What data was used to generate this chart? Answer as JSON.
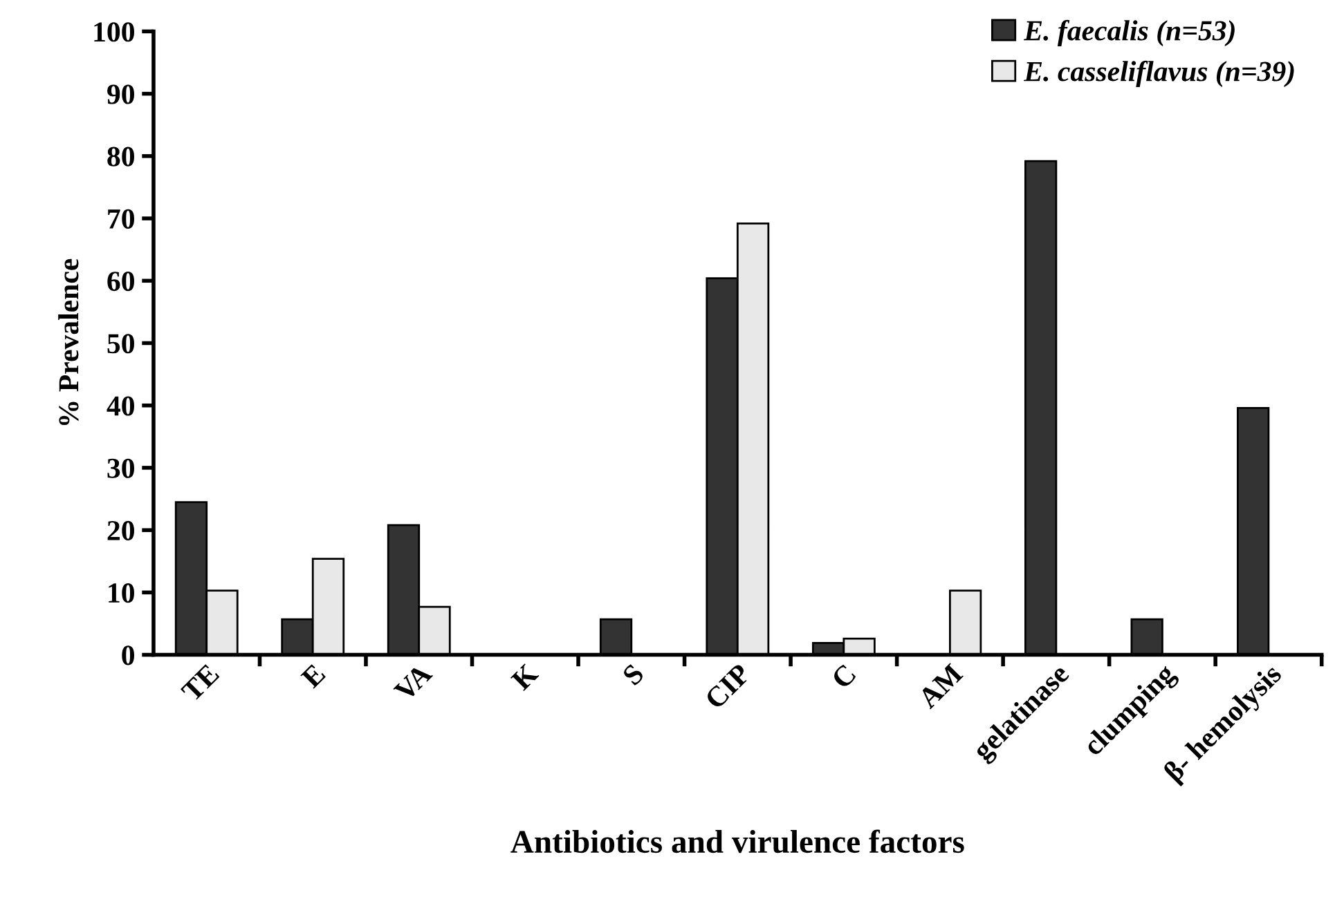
{
  "chart_data": {
    "type": "bar",
    "xlabel": "Antibiotics and virulence factors",
    "ylabel": "% Prevalence",
    "categories": [
      "TE",
      "E",
      "VA",
      "K",
      "S",
      "CIP",
      "C",
      "AM",
      "gelatinase",
      "clumping",
      "β- hemolysis"
    ],
    "series": [
      {
        "name": "E. faecalis (n=53)",
        "color": "#333333",
        "values": [
          24.5,
          5.7,
          20.8,
          0,
          5.7,
          60.4,
          1.9,
          0,
          79.2,
          5.7,
          39.6
        ]
      },
      {
        "name": "E. casseliflavus (n=39)",
        "color": "#e8e8e8",
        "values": [
          10.3,
          15.4,
          7.7,
          0,
          0,
          69.2,
          2.6,
          10.3,
          0,
          0,
          0
        ]
      }
    ],
    "ylim": [
      0,
      100
    ],
    "yticks": [
      0,
      10,
      20,
      30,
      40,
      50,
      60,
      70,
      80,
      90,
      100
    ],
    "grid": false,
    "legend": "top right"
  }
}
